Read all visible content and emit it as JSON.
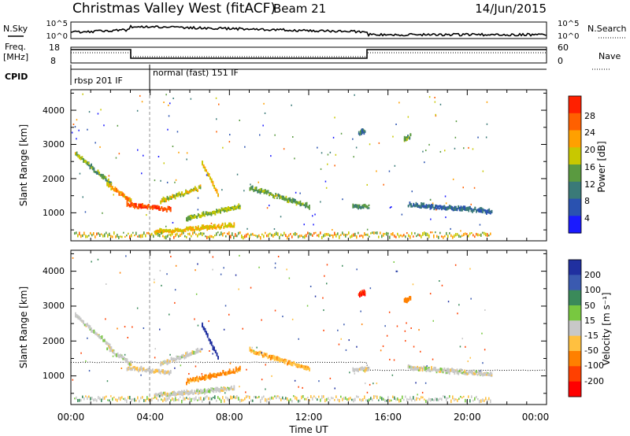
{
  "header": {
    "title": "Christmas Valley West (fitACF)",
    "beam": "Beam 21",
    "date": "14/Jun/2015"
  },
  "strips": {
    "nsky_label": "N.Sky",
    "nsearch_label": "N.Search",
    "freq_label_1": "Freq.",
    "freq_label_2": "[MHz]",
    "nave_label": "Nave",
    "cpid_label": "CPID",
    "noise_ticks_left": [
      "10^5",
      "10^0"
    ],
    "noise_ticks_right": [
      "10^5",
      "10^0"
    ],
    "freq_ticks": [
      "18",
      "8"
    ],
    "nave_ticks": [
      "60",
      "0"
    ]
  },
  "modes": [
    {
      "label": "rbsp 201 IF",
      "start": "00:00",
      "end": "03:58"
    },
    {
      "label": "normal (fast) 151 IF",
      "start": "03:58",
      "end": "24:00"
    }
  ],
  "time_axis": {
    "label": "Time UT",
    "ticks": [
      "00:00",
      "04:00",
      "08:00",
      "12:00",
      "16:00",
      "20:00",
      "00:00"
    ]
  },
  "range_axis": {
    "label": "Slant Range [km]",
    "ticks": [
      "1000",
      "2000",
      "3000",
      "4000"
    ]
  },
  "power_scale": {
    "label": "Power [dB]",
    "ticks": [
      "4",
      "8",
      "12",
      "16",
      "20",
      "24",
      "28"
    ],
    "colors": [
      "#1a1aff",
      "#2a52b0",
      "#3a7a78",
      "#5a9a40",
      "#c8c800",
      "#ffa000",
      "#ff6000",
      "#ff2000"
    ]
  },
  "velocity_scale": {
    "label": "Velocity [m s⁻¹]",
    "ticks": [
      "200",
      "100",
      "50",
      "15",
      "-15",
      "-50",
      "-100",
      "-200"
    ],
    "colors": [
      "#2030a0",
      "#3a5ab0",
      "#3a8a5a",
      "#78c840",
      "#c8c8c8",
      "#ffc040",
      "#ff8000",
      "#ff4000",
      "#ff0000"
    ]
  },
  "chart_data": [
    {
      "type": "heatmap",
      "title": "Power",
      "xlabel": "Time UT",
      "ylabel": "Slant Range [km]",
      "xlim": [
        0,
        24
      ],
      "ylim": [
        180,
        4600
      ],
      "colorbar": {
        "label": "Power [dB]",
        "range": [
          0,
          32
        ]
      },
      "echo_regions": [
        {
          "t0": 0.2,
          "t1": 2.0,
          "r0": 2700,
          "r1": 1800,
          "power": 14
        },
        {
          "t0": 1.8,
          "t1": 3.0,
          "r0": 1800,
          "r1": 1300,
          "power": 22
        },
        {
          "t0": 2.8,
          "t1": 5.0,
          "r0": 1200,
          "r1": 1050,
          "power": 28
        },
        {
          "t0": 4.5,
          "t1": 6.5,
          "r0": 1300,
          "r1": 1700,
          "power": 18
        },
        {
          "t0": 6.6,
          "t1": 7.4,
          "r0": 2400,
          "r1": 1500,
          "power": 20
        },
        {
          "t0": 5.8,
          "t1": 8.5,
          "r0": 800,
          "r1": 1150,
          "power": 16
        },
        {
          "t0": 4.2,
          "t1": 8.2,
          "r0": 400,
          "r1": 600,
          "power": 20
        },
        {
          "t0": 9.0,
          "t1": 12.0,
          "r0": 1700,
          "r1": 1150,
          "power": 14
        },
        {
          "t0": 14.2,
          "t1": 15.0,
          "r0": 1150,
          "r1": 1150,
          "power": 12
        },
        {
          "t0": 17.0,
          "t1": 21.2,
          "r0": 1200,
          "r1": 1000,
          "power": 8
        },
        {
          "t0": 14.5,
          "t1": 14.8,
          "r0": 3300,
          "r1": 3350,
          "power": 10
        },
        {
          "t0": 16.8,
          "t1": 17.1,
          "r0": 3100,
          "r1": 3200,
          "power": 14
        }
      ]
    },
    {
      "type": "heatmap",
      "title": "Velocity",
      "xlabel": "Time UT",
      "ylabel": "Slant Range [km]",
      "xlim": [
        0,
        24
      ],
      "ylim": [
        180,
        4600
      ],
      "colorbar": {
        "label": "Velocity [m s⁻¹]",
        "range": [
          -250,
          250
        ]
      },
      "echo_regions": [
        {
          "t0": 0.2,
          "t1": 2.0,
          "r0": 2700,
          "r1": 1800,
          "velocity": 0
        },
        {
          "t0": 1.8,
          "t1": 3.0,
          "r0": 1800,
          "r1": 1300,
          "velocity": 0
        },
        {
          "t0": 2.8,
          "t1": 5.0,
          "r0": 1200,
          "r1": 1050,
          "velocity": -10
        },
        {
          "t0": 4.5,
          "t1": 6.5,
          "r0": 1300,
          "r1": 1700,
          "velocity": 0
        },
        {
          "t0": 6.6,
          "t1": 7.4,
          "r0": 2400,
          "r1": 1500,
          "velocity": 200
        },
        {
          "t0": 5.8,
          "t1": 8.5,
          "r0": 800,
          "r1": 1150,
          "velocity": -60
        },
        {
          "t0": 4.2,
          "t1": 8.2,
          "r0": 400,
          "r1": 600,
          "velocity": 0
        },
        {
          "t0": 9.0,
          "t1": 12.0,
          "r0": 1700,
          "r1": 1150,
          "velocity": -40
        },
        {
          "t0": 14.2,
          "t1": 15.0,
          "r0": 1150,
          "r1": 1150,
          "velocity": 0
        },
        {
          "t0": 17.0,
          "t1": 21.2,
          "r0": 1200,
          "r1": 1000,
          "velocity": 0
        },
        {
          "t0": 14.5,
          "t1": 14.8,
          "r0": 3300,
          "r1": 3350,
          "velocity": -200
        },
        {
          "t0": 16.8,
          "t1": 17.1,
          "r0": 3100,
          "r1": 3200,
          "velocity": -80
        }
      ]
    }
  ]
}
